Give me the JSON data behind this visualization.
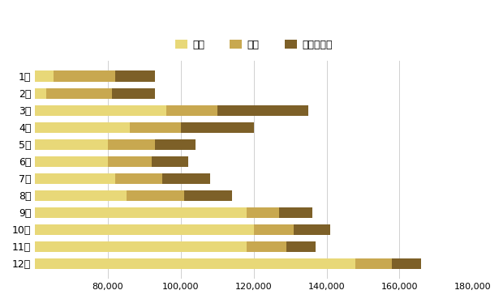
{
  "months": [
    "1月",
    "2月",
    "3月",
    "4月",
    "5月",
    "6月",
    "7月",
    "8月",
    "9月",
    "10月",
    "11月",
    "12月"
  ],
  "warehouse": [
    65000,
    63000,
    96000,
    86000,
    80000,
    80000,
    82000,
    85000,
    118000,
    120000,
    118000,
    148000
  ],
  "transport": [
    17000,
    18000,
    14000,
    14000,
    13000,
    12000,
    13000,
    16000,
    9000,
    11000,
    11000,
    10000
  ],
  "moving": [
    11000,
    12000,
    25000,
    20000,
    11000,
    10000,
    13000,
    13000,
    9000,
    10000,
    8000,
    8000
  ],
  "color_warehouse": "#e8d878",
  "color_transport": "#c8a850",
  "color_moving": "#7d6028",
  "legend_labels": [
    "倉庫",
    "運輸",
    "引越・移転"
  ],
  "xlim": [
    60000,
    180000
  ],
  "xticks": [
    80000,
    100000,
    120000,
    140000,
    160000,
    180000
  ],
  "bar_height": 0.62,
  "background_color": "#ffffff",
  "grid_color": "#d0d0d0",
  "font_name": "Noto Sans CJK JP"
}
